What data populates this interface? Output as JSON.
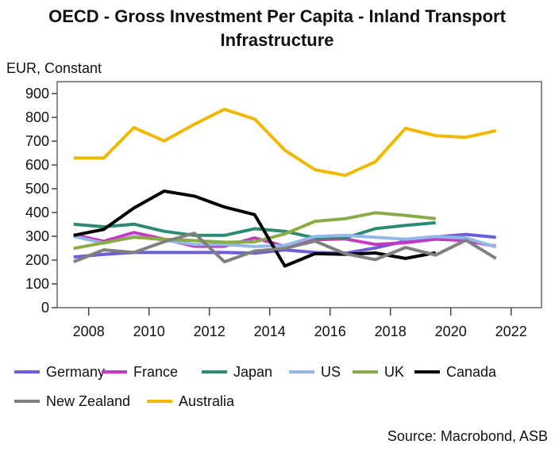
{
  "chart_data": {
    "type": "line",
    "title": "OECD - Gross Investment Per Capita - Inland Transport Infrastructure",
    "title_lines": [
      "OECD - Gross Investment Per Capita - Inland Transport",
      "Infrastructure"
    ],
    "ylabel": "EUR, Constant",
    "xlabel": "",
    "source": "Source: Macrobond, ASB",
    "ylim": [
      0,
      900
    ],
    "xlim": [
      2007,
      2023
    ],
    "yticks": [
      0,
      100,
      200,
      300,
      400,
      500,
      600,
      700,
      800,
      900
    ],
    "xticks": [
      2008,
      2010,
      2012,
      2014,
      2016,
      2018,
      2020,
      2022
    ],
    "grid": false,
    "legend_position": "bottom",
    "x": [
      2007,
      2008,
      2009,
      2010,
      2011,
      2012,
      2013,
      2014,
      2015,
      2016,
      2017,
      2018,
      2019,
      2020,
      2021
    ],
    "series": [
      {
        "name": "Germany",
        "color": "#6a5fd8",
        "values": [
          213,
          224,
          232,
          232,
          232,
          232,
          229,
          243,
          232,
          229,
          251,
          280,
          297,
          308,
          296
        ]
      },
      {
        "name": "France",
        "color": "#c23bc2",
        "values": [
          307,
          279,
          316,
          288,
          258,
          258,
          293,
          258,
          286,
          289,
          266,
          273,
          288,
          282,
          258
        ]
      },
      {
        "name": "Japan",
        "color": "#2e8b72",
        "values": [
          351,
          340,
          351,
          321,
          304,
          304,
          332,
          321,
          293,
          293,
          332,
          346,
          357,
          null,
          null
        ]
      },
      {
        "name": "US",
        "color": "#93b8e6",
        "values": [
          300,
          271,
          299,
          284,
          266,
          266,
          257,
          262,
          299,
          304,
          296,
          288,
          299,
          293,
          255
        ]
      },
      {
        "name": "UK",
        "color": "#8bab45",
        "values": [
          249,
          273,
          296,
          288,
          282,
          275,
          277,
          310,
          363,
          374,
          399,
          388,
          374,
          null,
          null
        ]
      },
      {
        "name": "Canada",
        "color": "#000000",
        "values": [
          304,
          329,
          419,
          490,
          469,
          423,
          391,
          175,
          227,
          224,
          230,
          207,
          231,
          null,
          null
        ]
      },
      {
        "name": "New Zealand",
        "color": "#808080",
        "values": [
          193,
          243,
          232,
          277,
          313,
          193,
          238,
          249,
          280,
          227,
          202,
          253,
          221,
          284,
          207
        ]
      },
      {
        "name": "Australia",
        "color": "#f0b800",
        "values": [
          629,
          629,
          757,
          701,
          771,
          834,
          793,
          662,
          580,
          556,
          613,
          754,
          723,
          716,
          744
        ]
      }
    ]
  }
}
